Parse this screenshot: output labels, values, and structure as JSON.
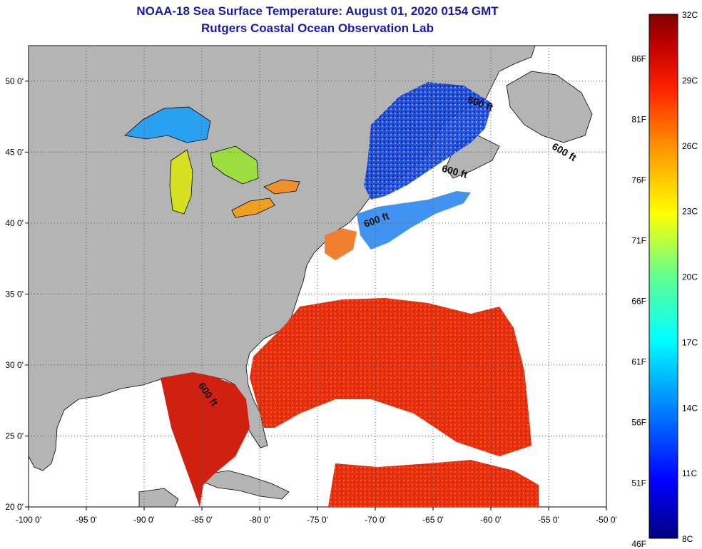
{
  "title": "NOAA-18 Sea Surface Temperature:  August 01, 2020 0154 GMT",
  "subtitle": "Rutgers Coastal Ocean Observation Lab",
  "map": {
    "lon_range": [
      -100,
      -50
    ],
    "lat_range": [
      20,
      52.5
    ],
    "lon_ticks": [
      "-100 0'",
      "-95 0'",
      "-90 0'",
      "-85 0'",
      "-80 0'",
      "-75 0'",
      "-70 0'",
      "-65 0'",
      "-60 0'",
      "-55 0'",
      "-50 0'"
    ],
    "lat_ticks": [
      "20 0'",
      "25 0'",
      "30 0'",
      "35 0'",
      "40 0'",
      "45 0'",
      "50 0'"
    ],
    "contour_labels": [
      {
        "text": "600 ft",
        "lon": -61,
        "lat": 48.2
      },
      {
        "text": "600 ft",
        "lon": -53.8,
        "lat": 44.8
      },
      {
        "text": "600 ft",
        "lon": -63.2,
        "lat": 43.4
      },
      {
        "text": "600 ft",
        "lon": -69.8,
        "lat": 40.0
      },
      {
        "text": "600 ft",
        "lon": -84.7,
        "lat": 27.8
      }
    ],
    "colors": {
      "land": "#b4b4b4",
      "cloud": "#ffffff",
      "coast": "#000000",
      "grid": "#555555"
    }
  },
  "colorbar": {
    "fahrenheit_labels": [
      "86F",
      "81F",
      "76F",
      "71F",
      "66F",
      "61F",
      "56F",
      "51F",
      "46F"
    ],
    "celsius_labels": [
      "32C",
      "29C",
      "26C",
      "23C",
      "20C",
      "17C",
      "14C",
      "11C",
      "8C"
    ],
    "range_c": [
      8,
      32
    ],
    "colormap": [
      "#000080",
      "#0000ff",
      "#00a0ff",
      "#00ffff",
      "#60ff90",
      "#ffff00",
      "#ff9000",
      "#ff2000",
      "#c00000",
      "#800000"
    ]
  }
}
